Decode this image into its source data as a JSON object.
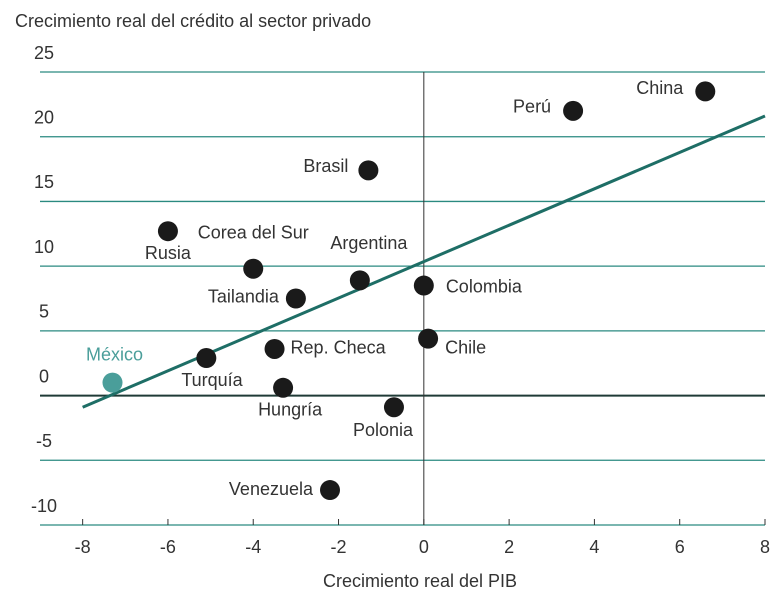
{
  "chart_data": {
    "type": "scatter",
    "title": "Crecimiento real del crédito al sector privado",
    "x_label": "Crecimiento real del PIB",
    "xlim": [
      -9,
      8
    ],
    "ylim": [
      -10,
      25
    ],
    "xticks": [
      -8,
      -6,
      -4,
      -2,
      0,
      2,
      4,
      6,
      8
    ],
    "yticks": [
      -10,
      -5,
      0,
      5,
      10,
      15,
      20,
      25
    ],
    "grid": true,
    "grid_color": "#2a8a80",
    "points": [
      {
        "name": "China",
        "x": 6.6,
        "y": 23.5,
        "color": "#1a1a1a"
      },
      {
        "name": "Perú",
        "x": 3.5,
        "y": 22.0,
        "color": "#1a1a1a"
      },
      {
        "name": "Brasil",
        "x": -1.3,
        "y": 17.4,
        "color": "#1a1a1a"
      },
      {
        "name": "Rusia",
        "x": -6.0,
        "y": 12.7,
        "color": "#1a1a1a"
      },
      {
        "name": "Corea del Sur",
        "x": -4.0,
        "y": 9.8,
        "color": "#1a1a1a"
      },
      {
        "name": "Argentina",
        "x": -1.5,
        "y": 8.9,
        "color": "#1a1a1a"
      },
      {
        "name": "Tailandia",
        "x": -3.0,
        "y": 7.5,
        "color": "#1a1a1a"
      },
      {
        "name": "Colombia",
        "x": 0.0,
        "y": 8.5,
        "color": "#1a1a1a"
      },
      {
        "name": "Rep. Checa",
        "x": -3.5,
        "y": 3.6,
        "color": "#1a1a1a"
      },
      {
        "name": "Chile",
        "x": 0.1,
        "y": 4.4,
        "color": "#1a1a1a"
      },
      {
        "name": "Turquía",
        "x": -5.1,
        "y": 2.9,
        "color": "#1a1a1a"
      },
      {
        "name": "México",
        "x": -7.3,
        "y": 1.0,
        "color": "#4a9e9a"
      },
      {
        "name": "Hungría",
        "x": -3.3,
        "y": 0.6,
        "color": "#1a1a1a"
      },
      {
        "name": "Polonia",
        "x": -0.7,
        "y": -0.9,
        "color": "#1a1a1a"
      },
      {
        "name": "Venezuela",
        "x": -2.2,
        "y": -7.3,
        "color": "#1a1a1a"
      }
    ],
    "trendline": {
      "x": [
        -8,
        8
      ],
      "y": [
        -0.9,
        21.6
      ],
      "color": "#1e6e66"
    }
  }
}
